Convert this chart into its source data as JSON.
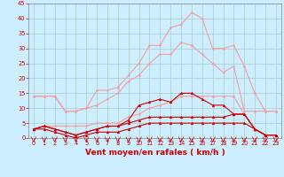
{
  "x": [
    0,
    1,
    2,
    3,
    4,
    5,
    6,
    7,
    8,
    9,
    10,
    11,
    12,
    13,
    14,
    15,
    16,
    17,
    18,
    19,
    20,
    21,
    22,
    23
  ],
  "series": [
    {
      "name": "line1_pink_upper",
      "color": "#f4a0a0",
      "linewidth": 0.8,
      "marker": "o",
      "markersize": 1.5,
      "y": [
        14,
        14,
        14,
        9,
        9,
        10,
        16,
        16,
        17,
        21,
        25,
        31,
        31,
        37,
        38,
        42,
        40,
        30,
        30,
        31,
        24,
        15,
        9,
        9
      ]
    },
    {
      "name": "line2_pink_mid",
      "color": "#f4a0a0",
      "linewidth": 0.8,
      "marker": "o",
      "markersize": 1.5,
      "y": [
        14,
        14,
        14,
        9,
        9,
        10,
        11,
        13,
        15,
        19,
        21,
        25,
        28,
        28,
        32,
        31,
        28,
        25,
        22,
        24,
        9,
        9,
        9,
        9
      ]
    },
    {
      "name": "line3_pink_lower",
      "color": "#f4a0a0",
      "linewidth": 0.8,
      "marker": "o",
      "markersize": 1.5,
      "y": [
        3,
        4,
        4,
        4,
        4,
        4,
        5,
        5,
        5,
        7,
        8,
        10,
        11,
        12,
        14,
        14,
        14,
        14,
        14,
        14,
        8,
        3,
        1,
        1
      ]
    },
    {
      "name": "line4_dark_red_upper",
      "color": "#cc0000",
      "linewidth": 0.8,
      "marker": "^",
      "markersize": 2.0,
      "y": [
        3,
        4,
        3,
        2,
        1,
        2,
        3,
        4,
        4,
        6,
        11,
        12,
        13,
        12,
        15,
        15,
        13,
        11,
        11,
        8,
        8,
        3,
        1,
        1
      ]
    },
    {
      "name": "line5_dark_red_mid",
      "color": "#cc0000",
      "linewidth": 0.8,
      "marker": "^",
      "markersize": 2.0,
      "y": [
        3,
        4,
        3,
        2,
        1,
        2,
        3,
        4,
        4,
        5,
        6,
        7,
        7,
        7,
        7,
        7,
        7,
        7,
        7,
        8,
        8,
        3,
        1,
        1
      ]
    },
    {
      "name": "line6_dark_red_lower",
      "color": "#cc0000",
      "linewidth": 0.8,
      "marker": "^",
      "markersize": 2.0,
      "y": [
        3,
        3,
        2,
        1,
        0,
        1,
        2,
        2,
        2,
        3,
        4,
        5,
        5,
        5,
        5,
        5,
        5,
        5,
        5,
        5,
        5,
        3,
        1,
        1
      ]
    },
    {
      "name": "line7_flat",
      "color": "#cc0000",
      "linewidth": 0.6,
      "marker": null,
      "markersize": 0,
      "y": [
        0,
        0,
        0,
        0,
        0,
        0,
        0,
        0,
        0,
        0,
        0,
        0,
        0,
        0,
        0,
        0,
        0,
        0,
        0,
        0,
        0,
        0,
        0,
        0
      ]
    }
  ],
  "xlabel": "Vent moyen/en rafales ( km/h )",
  "xlim": [
    -0.5,
    23.5
  ],
  "ylim": [
    0,
    45
  ],
  "yticks": [
    0,
    5,
    10,
    15,
    20,
    25,
    30,
    35,
    40,
    45
  ],
  "xticks": [
    0,
    1,
    2,
    3,
    4,
    5,
    6,
    7,
    8,
    9,
    10,
    11,
    12,
    13,
    14,
    15,
    16,
    17,
    18,
    19,
    20,
    21,
    22,
    23
  ],
  "bg_color": "#cceeff",
  "grid_color": "#aacccc",
  "tick_color": "#cc0000",
  "label_color": "#cc0000",
  "axis_color": "#888888",
  "xlabel_fontsize": 6.5,
  "tick_fontsize": 4.8
}
